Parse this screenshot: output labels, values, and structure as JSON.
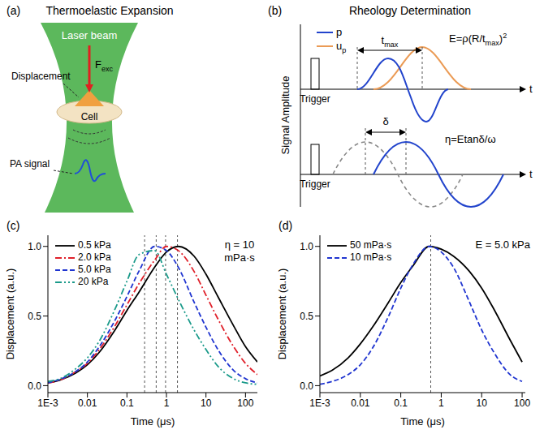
{
  "figure": {
    "a": {
      "letter": "(a)",
      "title": "Thermoelastic Expansion",
      "beam_label": "Laser beam",
      "force_label": [
        {
          "text": "F"
        },
        {
          "text": "exc",
          "sub": true
        }
      ],
      "displacement_label": "Displacement",
      "cell_label": "Cell",
      "signal_label": "PA signal"
    },
    "b": {
      "letter": "(b)",
      "title": "Rheology Determination",
      "y_label": "Signal Amplitude",
      "time_label": "t",
      "trigger_label": "Trigger",
      "legend": [
        {
          "name": [
            {
              "text": "p"
            }
          ],
          "color": "#2244cc"
        },
        {
          "name": [
            {
              "text": "u"
            },
            {
              "text": "p",
              "sub": true
            }
          ],
          "color": "#eb9b55"
        }
      ],
      "tmax_label": [
        {
          "text": "t"
        },
        {
          "text": "max",
          "sub": true
        }
      ],
      "elastic_eq": [
        {
          "text": "E=ρ(R/t"
        },
        {
          "text": "max",
          "sub": true
        },
        {
          "text": ")"
        },
        {
          "text": "2",
          "sup": true
        }
      ],
      "delta_label": "δ",
      "viscous_eq": [
        {
          "text": "η=Etanδ/ω"
        }
      ]
    }
  },
  "chart_data": [
    {
      "panel": "(c)",
      "type": "line",
      "x_label": "Time (μs)",
      "y_label": "Displacement (a.u.)",
      "annotation": "η = 10 mPa·s",
      "log": "x",
      "xlim": [
        0.001,
        200
      ],
      "xticks": [
        {
          "value": 0.001,
          "label": "1E-3"
        },
        0.01,
        0.1,
        1,
        10,
        100
      ],
      "ylim": [
        -0.05,
        1.08
      ],
      "yticks": [
        {
          "value": 0,
          "label": "0.0"
        },
        {
          "value": 0.5,
          "label": "0.5"
        },
        {
          "value": 1,
          "label": "1.0"
        }
      ],
      "legend": "upper left",
      "t_max": [
        0.28,
        0.55,
        0.95,
        1.9
      ],
      "x": [
        0.001,
        0.002,
        0.005,
        0.01,
        0.02,
        0.05,
        0.1,
        0.2,
        0.5,
        1,
        2,
        5,
        10,
        20,
        50,
        100,
        200
      ],
      "series": [
        {
          "name": "0.5 kPa",
          "color": "#000000",
          "line_style": "solid",
          "values": [
            0.02,
            0.04,
            0.09,
            0.15,
            0.24,
            0.4,
            0.54,
            0.67,
            0.85,
            0.96,
            1.0,
            0.93,
            0.8,
            0.64,
            0.43,
            0.28,
            0.17
          ]
        },
        {
          "name": "2.0 kPa",
          "color": "#e0202a",
          "line_style": "dashdot",
          "values": [
            0.02,
            0.04,
            0.1,
            0.16,
            0.26,
            0.43,
            0.58,
            0.73,
            0.9,
            1.0,
            0.97,
            0.82,
            0.65,
            0.48,
            0.28,
            0.16,
            0.08
          ]
        },
        {
          "name": "5.0 kPa",
          "color": "#2035d0",
          "line_style": "dashed",
          "values": [
            0.02,
            0.045,
            0.1,
            0.17,
            0.28,
            0.47,
            0.64,
            0.82,
            1.0,
            0.97,
            0.85,
            0.6,
            0.42,
            0.26,
            0.11,
            0.05,
            0.02
          ]
        },
        {
          "name": "20 kPa",
          "color": "#1a9a8a",
          "line_style": "dashdotdot",
          "values": [
            0.03,
            0.05,
            0.12,
            0.2,
            0.32,
            0.55,
            0.75,
            0.94,
            0.97,
            0.8,
            0.62,
            0.4,
            0.26,
            0.14,
            0.05,
            0.02,
            0.01
          ]
        }
      ]
    },
    {
      "panel": "(d)",
      "type": "line",
      "x_label": "Time (μs)",
      "y_label": "Displacement (a.u.)",
      "annotation": "E = 5.0 kPa",
      "log": "x",
      "xlim": [
        0.001,
        120
      ],
      "xticks": [
        {
          "value": 0.001,
          "label": "1E-3"
        },
        0.01,
        0.1,
        1,
        10,
        100
      ],
      "ylim": [
        -0.05,
        1.08
      ],
      "yticks": [
        {
          "value": 0,
          "label": "0.0"
        },
        {
          "value": 0.5,
          "label": "0.5"
        },
        {
          "value": 1,
          "label": "1.0"
        }
      ],
      "legend": "upper left",
      "t_max": [
        0.55
      ],
      "x": [
        0.001,
        0.002,
        0.005,
        0.01,
        0.02,
        0.05,
        0.1,
        0.2,
        0.5,
        1,
        2,
        5,
        10,
        20,
        50,
        100
      ],
      "series": [
        {
          "name": "50 mPa·s",
          "color": "#000000",
          "line_style": "solid",
          "values": [
            0.07,
            0.11,
            0.2,
            0.3,
            0.42,
            0.6,
            0.74,
            0.86,
            1.0,
            0.98,
            0.93,
            0.82,
            0.7,
            0.55,
            0.33,
            0.17
          ]
        },
        {
          "name": "10 mPa·s",
          "color": "#2035d0",
          "line_style": "dashed",
          "values": [
            0.01,
            0.03,
            0.08,
            0.15,
            0.27,
            0.5,
            0.7,
            0.87,
            1.0,
            0.96,
            0.85,
            0.6,
            0.4,
            0.24,
            0.08,
            0.03
          ]
        }
      ]
    }
  ]
}
